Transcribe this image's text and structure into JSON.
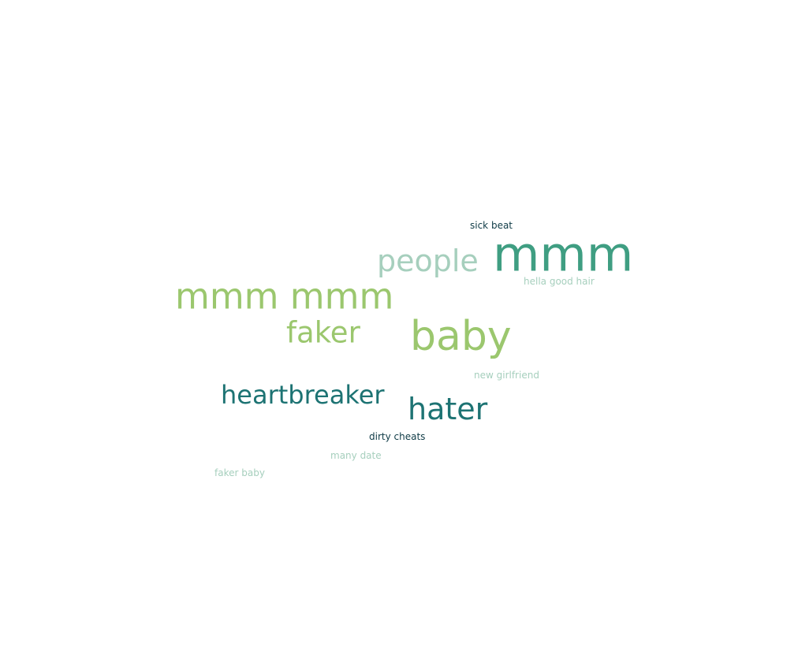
{
  "word_cloud": {
    "words": [
      {
        "text": "mmm",
        "color": "#3f9e82"
      },
      {
        "text": "mmm mmm",
        "color": "#9bc76e"
      },
      {
        "text": "baby",
        "color": "#9bc76e"
      },
      {
        "text": "people",
        "color": "#a6cfbd"
      },
      {
        "text": "faker",
        "color": "#9bc76e"
      },
      {
        "text": "hater",
        "color": "#1d7373"
      },
      {
        "text": "heartbreaker",
        "color": "#1d7373"
      },
      {
        "text": "sick beat",
        "color": "#0f3b46"
      },
      {
        "text": "hella good hair",
        "color": "#a6cfbd"
      },
      {
        "text": "new girlfriend",
        "color": "#a6cfbd"
      },
      {
        "text": "dirty cheats",
        "color": "#0f3b46"
      },
      {
        "text": "many date",
        "color": "#a6cfbd"
      },
      {
        "text": "faker baby",
        "color": "#a6cfbd"
      }
    ]
  }
}
